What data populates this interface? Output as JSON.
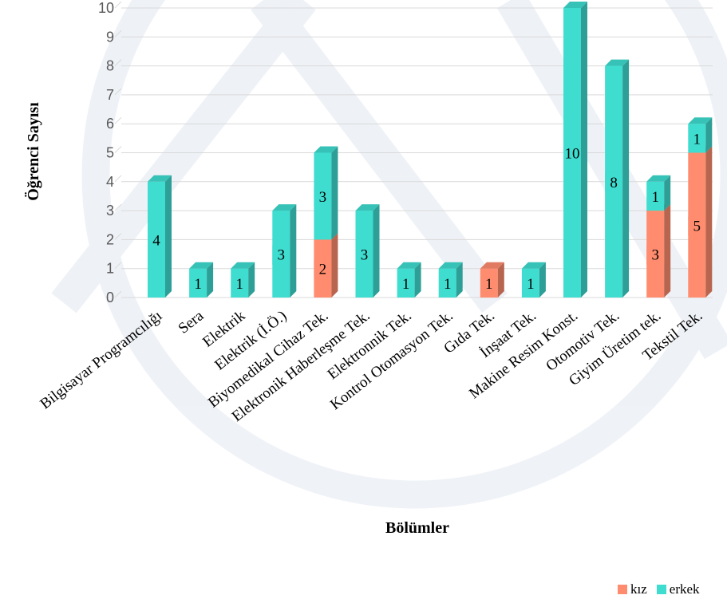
{
  "chart_data": {
    "type": "bar",
    "stacked": true,
    "ylabel": "Öğrenci Sayısı",
    "xlabel": "Bölümler",
    "ylim": [
      0,
      10
    ],
    "yticks": [
      0,
      1,
      2,
      3,
      4,
      5,
      6,
      7,
      8,
      9,
      10
    ],
    "grid": true,
    "legend_position": "bottom-right",
    "categories": [
      "Bilgisayar Programcılığı",
      "Sera",
      "Elektrik",
      "Elektrik (İ.Ö.)",
      "Biyomedikal Cihaz Tek.",
      "Elektronik Haberleşme Tek.",
      "Elektronnik Tek.",
      "Kontrol Otomasyon Tek.",
      "Gıda Tek.",
      "İnşaat Tek.",
      "Makine Resim Konst.",
      "Otomotiv Tek.",
      "Giyim Üretim tek.",
      "Tekstil Tek."
    ],
    "series": [
      {
        "name": "kız",
        "color": "#FF8C6E",
        "values": [
          0,
          0,
          0,
          0,
          2,
          0,
          0,
          0,
          1,
          0,
          0,
          0,
          3,
          5
        ]
      },
      {
        "name": "erkek",
        "color": "#3FDDD0",
        "values": [
          4,
          1,
          1,
          3,
          3,
          3,
          1,
          1,
          0,
          1,
          10,
          8,
          1,
          1
        ]
      }
    ]
  }
}
